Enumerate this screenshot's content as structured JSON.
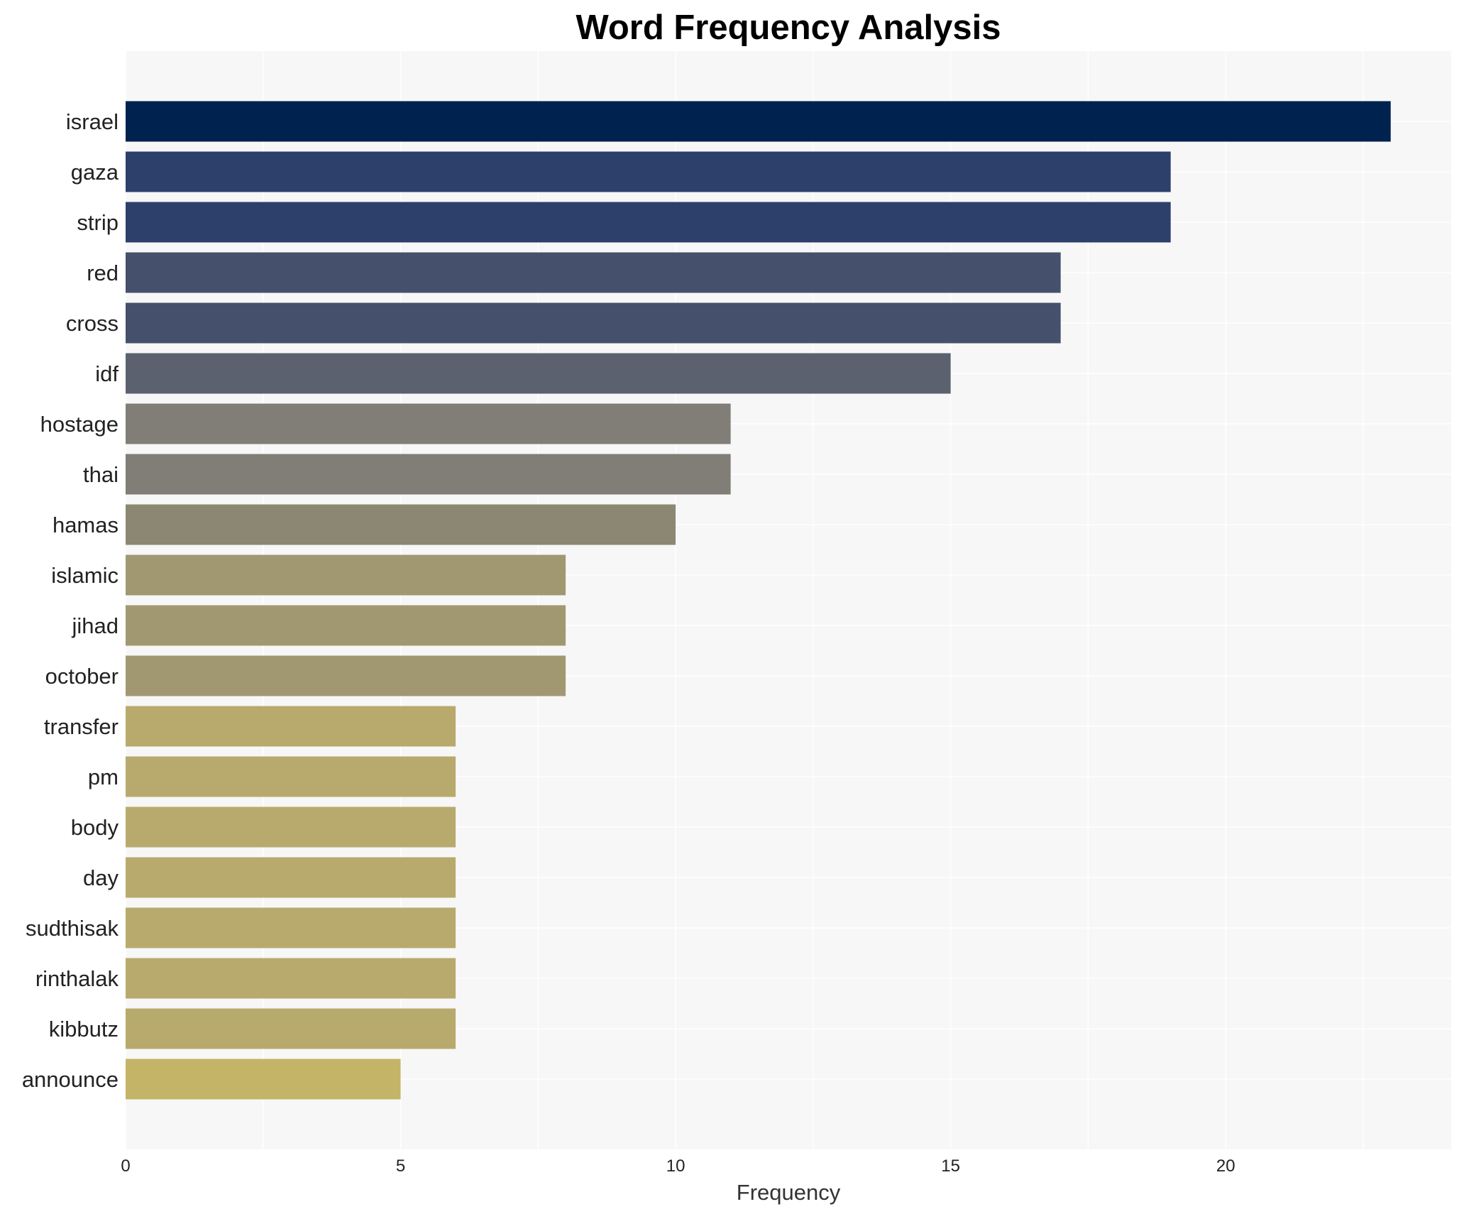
{
  "chart_data": {
    "type": "bar",
    "orientation": "horizontal",
    "title": "Word Frequency Analysis",
    "xlabel": "Frequency",
    "ylabel": "",
    "xlim": [
      0,
      24.1
    ],
    "xticks": [
      0,
      5,
      10,
      15,
      20
    ],
    "grid": true,
    "categories": [
      "israel",
      "gaza",
      "strip",
      "red",
      "cross",
      "idf",
      "hostage",
      "thai",
      "hamas",
      "islamic",
      "jihad",
      "october",
      "transfer",
      "pm",
      "body",
      "day",
      "sudthisak",
      "rinthalak",
      "kibbutz",
      "announce"
    ],
    "values": [
      23,
      19,
      19,
      17,
      17,
      15,
      11,
      11,
      10,
      8,
      8,
      8,
      6,
      6,
      6,
      6,
      6,
      6,
      6,
      5
    ],
    "colors": [
      "#00224e",
      "#2d3f6b",
      "#2d3f6b",
      "#45506c",
      "#45506c",
      "#5b616f",
      "#817e77",
      "#817e77",
      "#8b8773",
      "#a19871",
      "#a19871",
      "#a19871",
      "#b8aa6d",
      "#b8aa6d",
      "#b8aa6d",
      "#b8aa6d",
      "#b8aa6d",
      "#b8aa6d",
      "#b8aa6d",
      "#c4b467"
    ],
    "plot_background": "#f7f7f7",
    "grid_color": "#ffffff"
  }
}
